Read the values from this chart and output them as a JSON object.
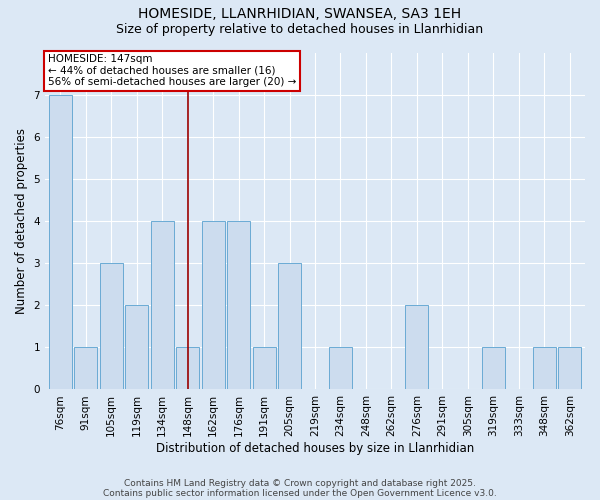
{
  "title1": "HOMESIDE, LLANRHIDIAN, SWANSEA, SA3 1EH",
  "title2": "Size of property relative to detached houses in Llanrhidian",
  "xlabel": "Distribution of detached houses by size in Llanrhidian",
  "ylabel": "Number of detached properties",
  "categories": [
    "76sqm",
    "91sqm",
    "105sqm",
    "119sqm",
    "134sqm",
    "148sqm",
    "162sqm",
    "176sqm",
    "191sqm",
    "205sqm",
    "219sqm",
    "234sqm",
    "248sqm",
    "262sqm",
    "276sqm",
    "291sqm",
    "305sqm",
    "319sqm",
    "333sqm",
    "348sqm",
    "362sqm"
  ],
  "values": [
    7,
    1,
    3,
    2,
    4,
    1,
    4,
    4,
    1,
    3,
    0,
    1,
    0,
    0,
    2,
    0,
    0,
    1,
    0,
    1,
    1
  ],
  "bar_color": "#ccdcee",
  "bar_edge_color": "#6aaad4",
  "vline_x_index": 5,
  "vline_color": "#990000",
  "annotation_line1": "HOMESIDE: 147sqm",
  "annotation_line2": "← 44% of detached houses are smaller (16)",
  "annotation_line3": "56% of semi-detached houses are larger (20) →",
  "annotation_box_facecolor": "#ffffff",
  "annotation_box_edgecolor": "#cc0000",
  "ylim": [
    0,
    8
  ],
  "yticks": [
    0,
    1,
    2,
    3,
    4,
    5,
    6,
    7
  ],
  "footnote1": "Contains HM Land Registry data © Crown copyright and database right 2025.",
  "footnote2": "Contains public sector information licensed under the Open Government Licence v3.0.",
  "bg_color": "#dce8f5",
  "plot_bg_color": "#dce8f5",
  "title_fontsize": 10,
  "subtitle_fontsize": 9,
  "axis_label_fontsize": 8.5,
  "tick_fontsize": 7.5,
  "annotation_fontsize": 7.5,
  "footnote_fontsize": 6.5
}
